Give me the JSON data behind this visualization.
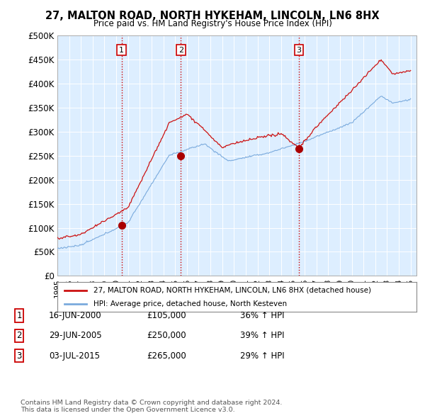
{
  "title": "27, MALTON ROAD, NORTH HYKEHAM, LINCOLN, LN6 8HX",
  "subtitle": "Price paid vs. HM Land Registry's House Price Index (HPI)",
  "xlim_start": 1995.0,
  "xlim_end": 2025.5,
  "ylim": [
    0,
    500000
  ],
  "yticks": [
    0,
    50000,
    100000,
    150000,
    200000,
    250000,
    300000,
    350000,
    400000,
    450000,
    500000
  ],
  "ytick_labels": [
    "£0",
    "£50K",
    "£100K",
    "£150K",
    "£200K",
    "£250K",
    "£300K",
    "£350K",
    "£400K",
    "£450K",
    "£500K"
  ],
  "xtick_years": [
    1995,
    1996,
    1997,
    1998,
    1999,
    2000,
    2001,
    2002,
    2003,
    2004,
    2005,
    2006,
    2007,
    2008,
    2009,
    2010,
    2011,
    2012,
    2013,
    2014,
    2015,
    2016,
    2017,
    2018,
    2019,
    2020,
    2021,
    2022,
    2023,
    2024,
    2025
  ],
  "transactions": [
    {
      "label": "1",
      "date": "16-JUN-2000",
      "price": 105000,
      "pct": "36%",
      "direction": "↑",
      "x": 2000.46
    },
    {
      "label": "2",
      "date": "29-JUN-2005",
      "price": 250000,
      "pct": "39%",
      "direction": "↑",
      "x": 2005.49
    },
    {
      "label": "3",
      "date": "03-JUL-2015",
      "price": 265000,
      "pct": "29%",
      "direction": "↑",
      "x": 2015.51
    }
  ],
  "vline_color": "#cc0000",
  "marker_color_red": "#aa0000",
  "line_color_red": "#cc1111",
  "line_color_blue": "#7aaadd",
  "legend_label_red": "27, MALTON ROAD, NORTH HYKEHAM, LINCOLN, LN6 8HX (detached house)",
  "legend_label_blue": "HPI: Average price, detached house, North Kesteven",
  "chart_bg": "#ddeeff",
  "fig_bg": "#ffffff",
  "grid_color": "#ffffff",
  "footer": "Contains HM Land Registry data © Crown copyright and database right 2024.\nThis data is licensed under the Open Government Licence v3.0."
}
